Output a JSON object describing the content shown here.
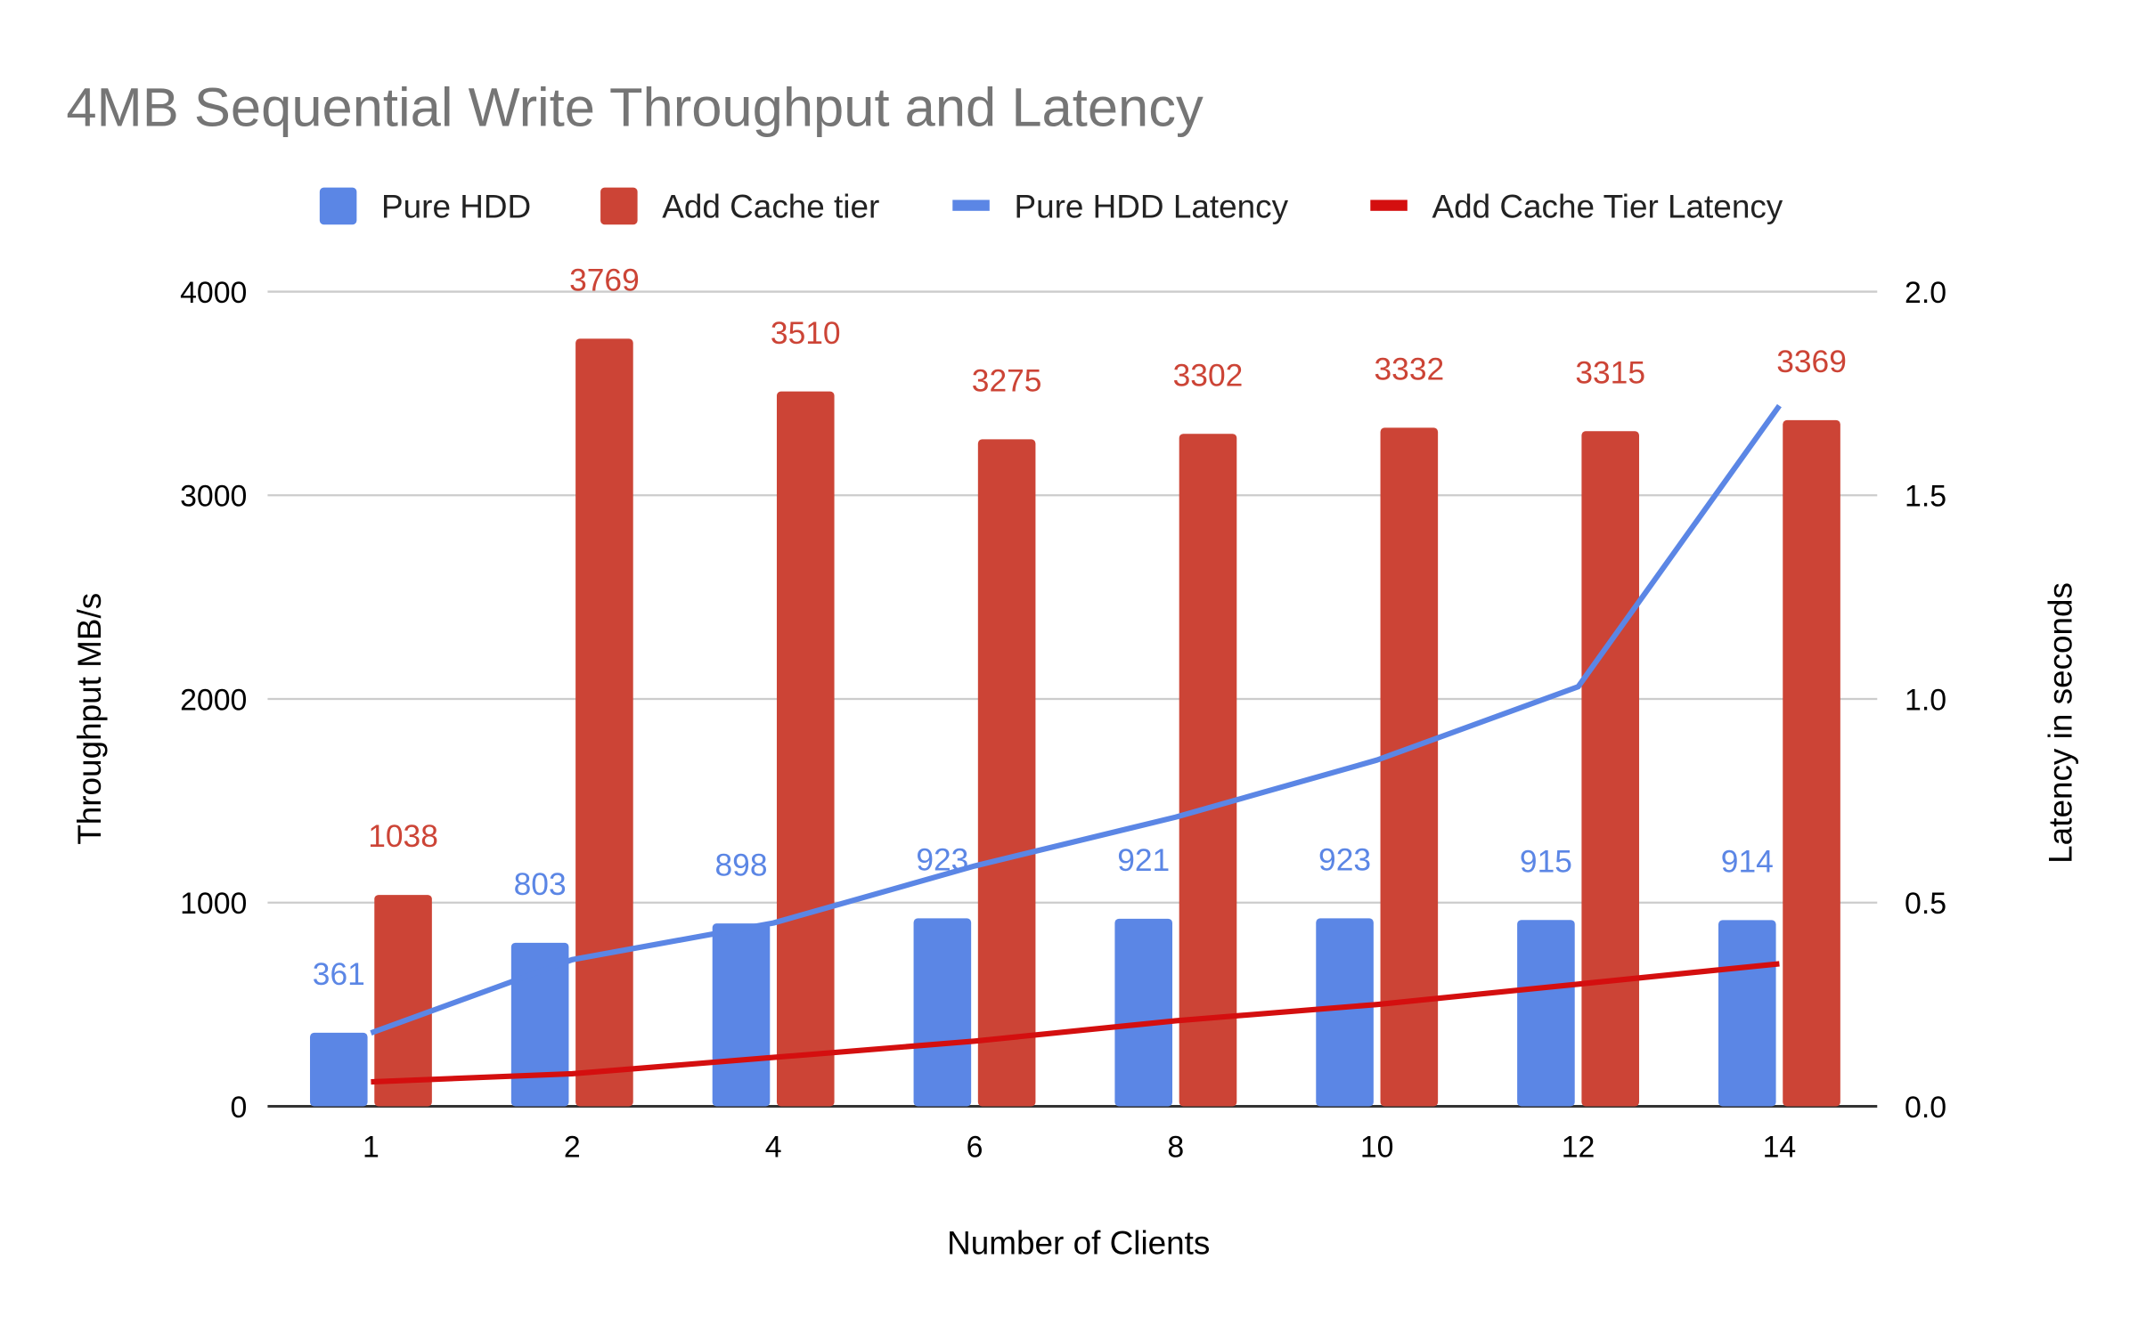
{
  "chart_data": {
    "type": "bar",
    "title": "4MB Sequential Write Throughput and Latency",
    "xlabel": "Number of Clients",
    "ylabel": "Throughput MB/s",
    "y2label": "Latency in seconds",
    "categories": [
      "1",
      "2",
      "4",
      "6",
      "8",
      "10",
      "12",
      "14"
    ],
    "ylim": [
      0,
      4000
    ],
    "y_ticks": [
      "0",
      "1000",
      "2000",
      "3000",
      "4000"
    ],
    "y2lim": [
      0,
      2.0
    ],
    "y2_ticks": [
      "0.0",
      "0.5",
      "1.0",
      "1.5",
      "2.0"
    ],
    "grid": true,
    "legend_position": "top",
    "series": [
      {
        "name": "Pure HDD",
        "type": "bar",
        "axis": "left",
        "color": "#5b86e5",
        "values": [
          361,
          803,
          898,
          923,
          921,
          923,
          915,
          914
        ],
        "labels": [
          "361",
          "803",
          "898",
          "923",
          "921",
          "923",
          "915",
          "914"
        ]
      },
      {
        "name": "Add Cache tier",
        "type": "bar",
        "axis": "left",
        "color": "#cc4436",
        "values": [
          1038,
          3769,
          3510,
          3275,
          3302,
          3332,
          3315,
          3369
        ],
        "labels": [
          "1038",
          "3769",
          "3510",
          "3275",
          "3302",
          "3332",
          "3315",
          "3369"
        ]
      },
      {
        "name": "Pure HDD Latency",
        "type": "line",
        "axis": "right",
        "color": "#5b86e5",
        "values": [
          0.18,
          0.36,
          0.45,
          0.59,
          0.71,
          0.85,
          1.03,
          1.72
        ]
      },
      {
        "name": "Add Cache Tier Latency",
        "type": "line",
        "axis": "right",
        "color": "#d40f0f",
        "values": [
          0.06,
          0.08,
          0.12,
          0.16,
          0.21,
          0.25,
          0.3,
          0.35
        ]
      }
    ]
  }
}
